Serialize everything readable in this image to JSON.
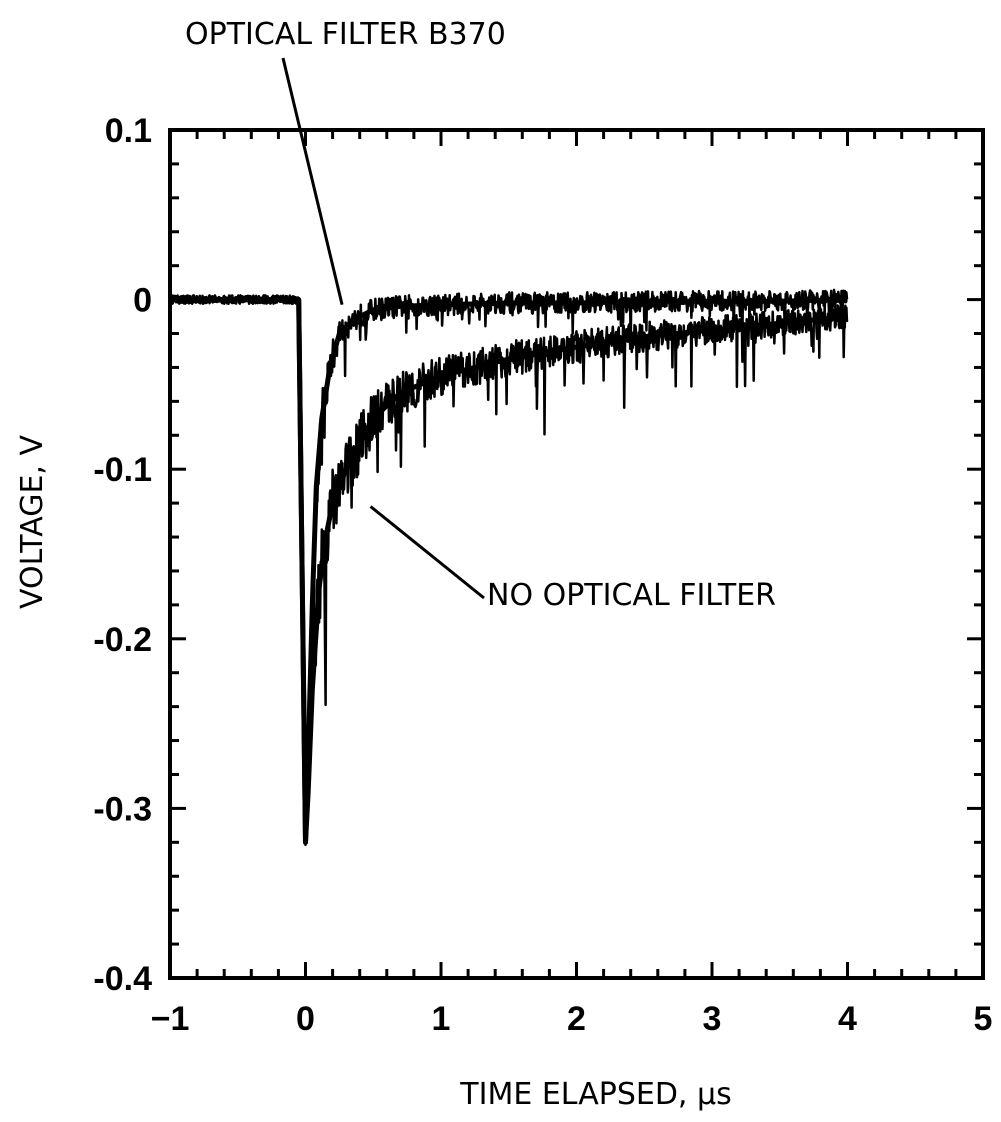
{
  "chart_data": {
    "type": "line",
    "xlabel": "TIME ELAPSED, μs",
    "ylabel": "VOLTAGE, V",
    "xlim": [
      -1,
      5
    ],
    "ylim": [
      -0.4,
      0.1
    ],
    "x_ticks": [
      -1,
      0,
      1,
      2,
      3,
      4,
      5
    ],
    "x_tick_labels": [
      "−1",
      "0",
      "1",
      "2",
      "3",
      "4",
      "5"
    ],
    "y_ticks": [
      0.1,
      0,
      -0.1,
      -0.2,
      -0.3,
      -0.4
    ],
    "y_tick_labels": [
      "0.1",
      "0",
      "-0.1",
      "-0.2",
      "-0.3",
      "-0.4"
    ],
    "grid": false,
    "legend": "none",
    "annotations": [
      {
        "text": "OPTICAL FILTER B370",
        "points_to": {
          "x": 0.27,
          "y": -0.003
        }
      },
      {
        "text": "NO OPTICAL FILTER",
        "points_to": {
          "x": 0.48,
          "y": -0.122
        }
      }
    ],
    "series": [
      {
        "x": [
          -1.0,
          -0.5,
          -0.05,
          0.0,
          0.02,
          0.05,
          0.08,
          0.12,
          0.18,
          0.25,
          0.35,
          0.5,
          0.7,
          1.0,
          1.5,
          2.0,
          2.5,
          3.0,
          3.5,
          4.0
        ],
        "y": [
          0.0,
          0.0,
          0.0,
          -0.32,
          -0.27,
          -0.18,
          -0.11,
          -0.07,
          -0.04,
          -0.02,
          -0.012,
          -0.006,
          -0.004,
          -0.003,
          -0.002,
          -0.002,
          -0.001,
          -0.001,
          -0.001,
          0.0
        ]
      },
      {
        "x": [
          -1.0,
          -0.5,
          -0.05,
          0.0,
          0.02,
          0.05,
          0.1,
          0.15,
          0.2,
          0.3,
          0.4,
          0.5,
          0.7,
          1.0,
          1.5,
          2.0,
          2.5,
          3.0,
          3.5,
          4.0
        ],
        "y": [
          0.0,
          0.0,
          0.0,
          -0.32,
          -0.29,
          -0.23,
          -0.17,
          -0.14,
          -0.12,
          -0.1,
          -0.085,
          -0.07,
          -0.055,
          -0.045,
          -0.035,
          -0.028,
          -0.022,
          -0.018,
          -0.014,
          -0.01
        ]
      }
    ]
  }
}
